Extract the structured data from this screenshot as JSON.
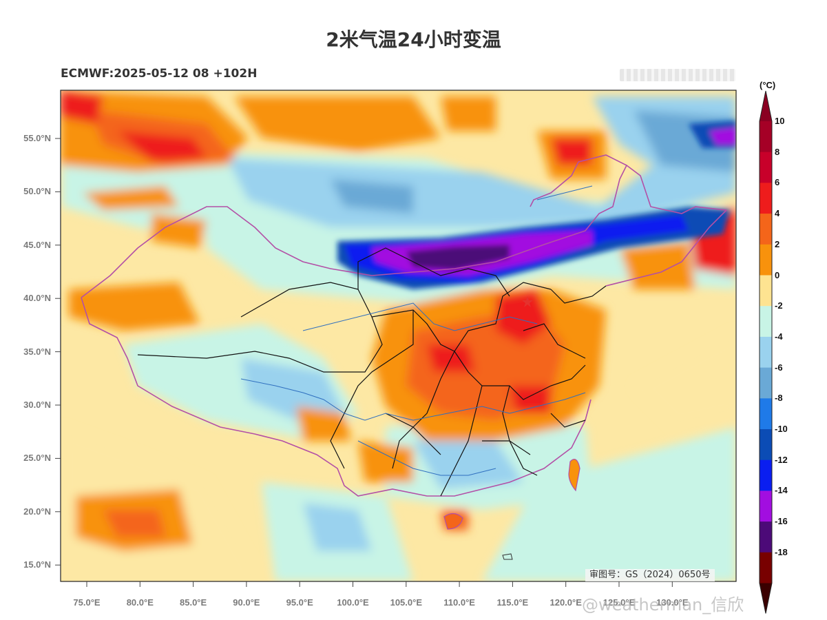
{
  "title": "2米气温24小时变温",
  "subtitle": "ECMWF:2025-05-12 08 +102H",
  "colorbar": {
    "unit": "(°C)",
    "levels": [
      {
        "label": "10",
        "color": "#a50026"
      },
      {
        "label": "8",
        "color": "#c8002a"
      },
      {
        "label": "6",
        "color": "#ee1c1c"
      },
      {
        "label": "4",
        "color": "#f4651a"
      },
      {
        "label": "2",
        "color": "#f8920c"
      },
      {
        "label": "0",
        "color": "#fee391"
      },
      {
        "label": "-2",
        "color": "#c8f4e6"
      },
      {
        "label": "-4",
        "color": "#9ad2ee"
      },
      {
        "label": "-6",
        "color": "#6aa9d6"
      },
      {
        "label": "-8",
        "color": "#1f7ae8"
      },
      {
        "label": "-10",
        "color": "#0b4cb5"
      },
      {
        "label": "-12",
        "color": "#0a1ef0"
      },
      {
        "label": "-14",
        "color": "#a20ee0"
      },
      {
        "label": "-16",
        "color": "#4c0a78"
      },
      {
        "label": "-18",
        "color": "#780000"
      }
    ],
    "cap_top_color": "#8a0022",
    "cap_bottom_color": "#3a0000"
  },
  "axes": {
    "lat_ticks": [
      "55.0°N",
      "50.0°N",
      "45.0°N",
      "40.0°N",
      "35.0°N",
      "30.0°N",
      "25.0°N",
      "20.0°N",
      "15.0°N"
    ],
    "lon_ticks": [
      "75.0°E",
      "80.0°E",
      "85.0°E",
      "90.0°E",
      "95.0°E",
      "100.0°E",
      "105.0°E",
      "110.0°E",
      "115.0°E",
      "120.0°E",
      "125.0°E",
      "130.0°E"
    ]
  },
  "certification": "审图号：GS（2024）0650号",
  "watermark": "@weatherman_信欣"
}
